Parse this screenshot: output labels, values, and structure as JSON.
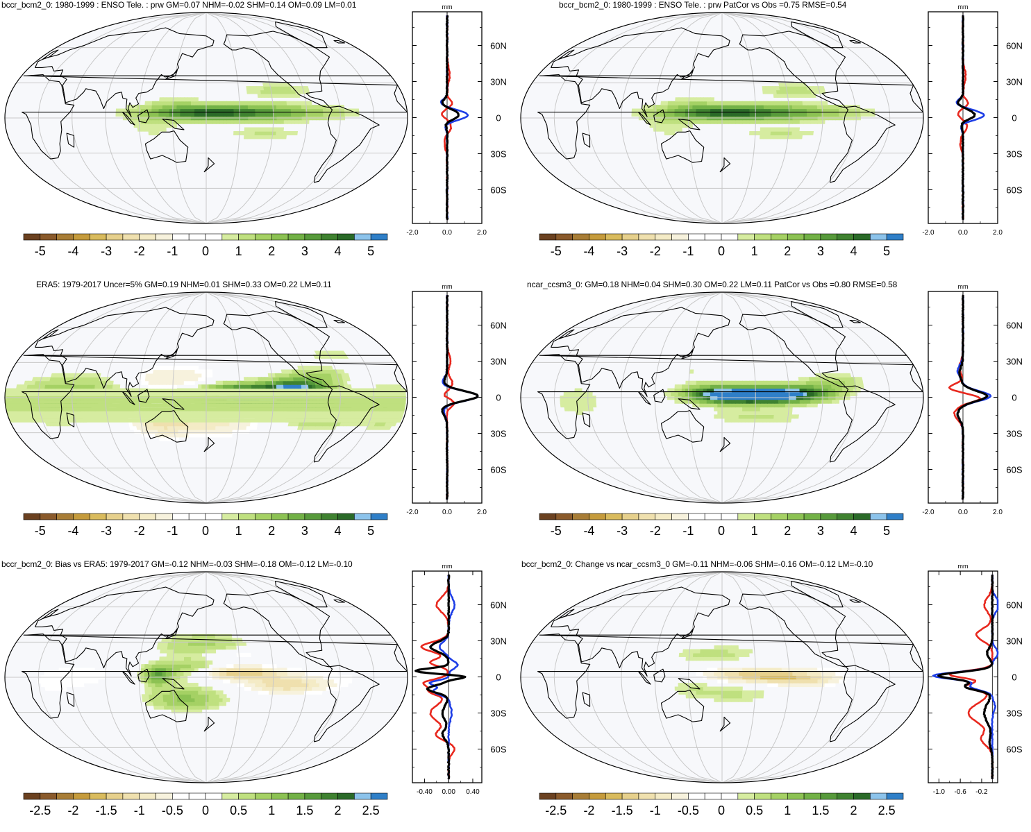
{
  "colors": {
    "palette_full": [
      "#6b4120",
      "#8a5a2b",
      "#a87d36",
      "#c59b3c",
      "#d9bb5d",
      "#e6d08c",
      "#efe0ae",
      "#f4ebc6",
      "#f7f2dd",
      "#ffffff",
      "#ffffff",
      "#d6eca0",
      "#bfe07f",
      "#a5d164",
      "#8cc253",
      "#72b146",
      "#579a3b",
      "#3f8230",
      "#2a6a28",
      "#8cc3eb",
      "#2f7fc8"
    ],
    "ocean": "#f7f8fb",
    "grid": "#c8c8c8",
    "curve_model": "#e8281e",
    "curve_obs": "#1e3ee6",
    "curve_mean": "#000000"
  },
  "panels": [
    {
      "id": "model-enso-tele",
      "title": "bccr_bcm2_0: 1980-1999 : ENSO Tele. : prw GM=0.07 NHM=-0.02 SHM=0.14 OM=0.09 LM=0.01",
      "title_offset": 0,
      "colorbar_labels": [
        "-5",
        "-4",
        "-3",
        "-2",
        "-1",
        "0",
        "1",
        "2",
        "3",
        "4",
        "5"
      ],
      "profile": {
        "unit": "mm",
        "xticks": [
          "-2.0",
          "0.0",
          "2.0"
        ],
        "xrange": [
          -2,
          2
        ],
        "lat_labels": [
          "60N",
          "30N",
          "0",
          "30S",
          "60S"
        ]
      },
      "pattern": "weak"
    },
    {
      "id": "model-enso-patcor",
      "title": "bccr_bcm2_0: 1980-1999 : ENSO Tele. : prw PatCor vs Obs =0.75 RMSE=0.54",
      "title_offset": 60,
      "colorbar_labels": [
        "-5",
        "-4",
        "-3",
        "-2",
        "-1",
        "0",
        "1",
        "2",
        "3",
        "4",
        "5"
      ],
      "profile": {
        "unit": "mm",
        "xticks": [
          "-2.0",
          "0.0",
          "2.0"
        ],
        "xrange": [
          -2,
          2
        ],
        "lat_labels": [
          "60N",
          "30N",
          "0",
          "30S",
          "60S"
        ]
      },
      "pattern": "weak"
    },
    {
      "id": "era5-obs",
      "title": "ERA5: 1979-2017 Uncer=5% GM=0.19 NHM=0.01 SHM=0.33 OM=0.22 LM=0.11",
      "title_offset": 50,
      "colorbar_labels": [
        "-5",
        "-4",
        "-3",
        "-2",
        "-1",
        "0",
        "1",
        "2",
        "3",
        "4",
        "5"
      ],
      "profile": {
        "unit": "mm",
        "xticks": [
          "-2.0",
          "0.0",
          "2.0"
        ],
        "xrange": [
          -2,
          2
        ],
        "lat_labels": [
          "60N",
          "30N",
          "0",
          "30S",
          "60S"
        ]
      },
      "pattern": "era5"
    },
    {
      "id": "ncar-ccsm3",
      "title": "ncar_ccsm3_0: GM=0.18 NHM=0.04 SHM=0.30 OM=0.22 LM=0.11 PatCor vs Obs =0.80 RMSE=0.58",
      "title_offset": 14,
      "colorbar_labels": [
        "-5",
        "-4",
        "-3",
        "-2",
        "-1",
        "0",
        "1",
        "2",
        "3",
        "4",
        "5"
      ],
      "profile": {
        "unit": "mm",
        "xticks": [
          "-2.0",
          "0.0",
          "2.0"
        ],
        "xrange": [
          -2,
          2
        ],
        "lat_labels": [
          "60N",
          "30N",
          "0",
          "30S",
          "60S"
        ]
      },
      "pattern": "ncar"
    },
    {
      "id": "bias-vs-era5",
      "title": "bccr_bcm2_0: Bias vs ERA5: 1979-2017 GM=-0.12 NHM=-0.03 SHM=-0.18 OM=-0.12 LM=-0.10",
      "title_offset": 0,
      "colorbar_labels": [
        "-2.5",
        "-2",
        "-1.5",
        "-1",
        "-0.5",
        "0",
        "0.5",
        "1",
        "1.5",
        "2",
        "2.5"
      ],
      "profile": {
        "unit": "mm",
        "xticks": [
          "-0.40",
          "0.00",
          "0.40"
        ],
        "xrange": [
          -0.6,
          0.55
        ],
        "lat_labels": [
          "60N",
          "30N",
          "0",
          "30S",
          "60S"
        ]
      },
      "pattern": "bias"
    },
    {
      "id": "change-vs-ncar",
      "title": "bccr_bcm2_0: Change vs ncar_ccsm3_0 GM=-0.11 NHM=-0.06 SHM=-0.16 OM=-0.12 LM=-0.10",
      "title_offset": 6,
      "colorbar_labels": [
        "-2.5",
        "-2",
        "-1.5",
        "-1",
        "-0.5",
        "0",
        "0.5",
        "1",
        "1.5",
        "2",
        "2.5"
      ],
      "profile": {
        "unit": "mm",
        "xticks": [
          "-1.0",
          "-0.6",
          "-0.2"
        ],
        "xrange": [
          -1.2,
          0.1
        ],
        "lat_labels": [
          "60N",
          "30N",
          "0",
          "30S",
          "60S"
        ]
      },
      "pattern": "change"
    }
  ]
}
